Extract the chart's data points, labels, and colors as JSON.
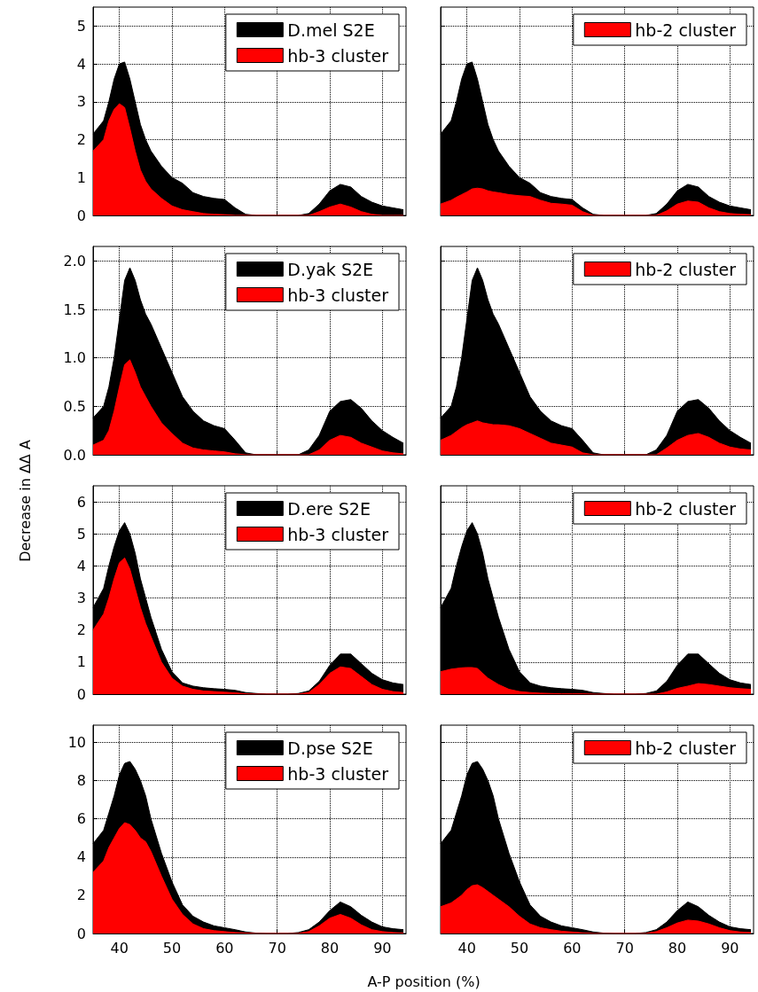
{
  "chart_data": [
    {
      "type": "area",
      "x": [
        35,
        37,
        38,
        39,
        40,
        41,
        42,
        43,
        44,
        45,
        46,
        48,
        50,
        52,
        54,
        56,
        58,
        60,
        62,
        64,
        66,
        68,
        70,
        72,
        74,
        76,
        78,
        80,
        82,
        84,
        86,
        88,
        90,
        92,
        94
      ],
      "xlim": [
        35,
        94.5
      ],
      "xticks": [
        40,
        50,
        60,
        70,
        80,
        90
      ],
      "ylim": [
        0,
        5.5
      ],
      "yticks": [
        0,
        1,
        2,
        3,
        4,
        5
      ],
      "grid": true,
      "legend": "top right",
      "tick_labels": "y",
      "series": [
        {
          "name": "D.mel S2E",
          "color": "#000000",
          "values": [
            2.15,
            2.5,
            3.0,
            3.6,
            4.0,
            4.05,
            3.6,
            3.0,
            2.4,
            2.0,
            1.7,
            1.3,
            1.0,
            0.85,
            0.6,
            0.5,
            0.45,
            0.42,
            0.2,
            0.03,
            0,
            0,
            0,
            0,
            0,
            0.05,
            0.3,
            0.65,
            0.82,
            0.75,
            0.5,
            0.35,
            0.25,
            0.2,
            0.15
          ]
        },
        {
          "name": "hb-3 cluster",
          "color": "#ff0000",
          "values": [
            1.7,
            2.0,
            2.5,
            2.8,
            2.95,
            2.85,
            2.3,
            1.7,
            1.2,
            0.9,
            0.7,
            0.45,
            0.25,
            0.15,
            0.1,
            0.05,
            0.03,
            0.02,
            0,
            0,
            0,
            0,
            0,
            0,
            0,
            0,
            0.1,
            0.22,
            0.3,
            0.22,
            0.1,
            0.03,
            0,
            0,
            0
          ]
        }
      ]
    },
    {
      "type": "area",
      "x": [
        35,
        37,
        38,
        39,
        40,
        41,
        42,
        43,
        44,
        45,
        46,
        48,
        50,
        52,
        54,
        56,
        58,
        60,
        62,
        64,
        66,
        68,
        70,
        72,
        74,
        76,
        78,
        80,
        82,
        84,
        86,
        88,
        90,
        92,
        94
      ],
      "xlim": [
        35,
        94.5
      ],
      "xticks": [
        40,
        50,
        60,
        70,
        80,
        90
      ],
      "ylim": [
        0,
        5.5
      ],
      "yticks": [
        0,
        1,
        2,
        3,
        4,
        5
      ],
      "grid": true,
      "legend": "top right",
      "tick_labels": false,
      "series": [
        {
          "color": "#000000",
          "values": [
            2.15,
            2.5,
            3.0,
            3.6,
            4.0,
            4.05,
            3.6,
            3.0,
            2.4,
            2.0,
            1.7,
            1.3,
            1.0,
            0.85,
            0.6,
            0.5,
            0.45,
            0.42,
            0.2,
            0.03,
            0,
            0,
            0,
            0,
            0,
            0.05,
            0.3,
            0.65,
            0.82,
            0.75,
            0.5,
            0.35,
            0.25,
            0.2,
            0.15
          ]
        },
        {
          "name": "hb-2 cluster",
          "color": "#ff0000",
          "values": [
            0.3,
            0.4,
            0.48,
            0.55,
            0.62,
            0.7,
            0.72,
            0.7,
            0.65,
            0.62,
            0.6,
            0.55,
            0.52,
            0.5,
            0.4,
            0.32,
            0.3,
            0.27,
            0.1,
            0,
            0,
            0,
            0,
            0,
            0,
            0,
            0.12,
            0.3,
            0.38,
            0.35,
            0.2,
            0.1,
            0.05,
            0.03,
            0.02
          ]
        }
      ]
    },
    {
      "type": "area",
      "x": [
        35,
        37,
        38,
        39,
        40,
        41,
        42,
        43,
        44,
        45,
        46,
        48,
        50,
        52,
        54,
        56,
        58,
        60,
        62,
        64,
        66,
        68,
        70,
        72,
        74,
        76,
        78,
        80,
        82,
        84,
        86,
        88,
        90,
        92,
        94
      ],
      "xlim": [
        35,
        94.5
      ],
      "xticks": [
        40,
        50,
        60,
        70,
        80,
        90
      ],
      "ylim": [
        0,
        2.15
      ],
      "yticks": [
        {
          "value": 0,
          "label": "0.0"
        },
        {
          "value": 0.5,
          "label": "0.5"
        },
        {
          "value": 1,
          "label": "1.0"
        },
        {
          "value": 1.5,
          "label": "1.5"
        },
        {
          "value": 2,
          "label": "2.0"
        }
      ],
      "grid": true,
      "legend": "top right",
      "tick_labels": "y",
      "series": [
        {
          "name": "D.yak S2E",
          "color": "#000000",
          "values": [
            0.38,
            0.5,
            0.7,
            1.0,
            1.4,
            1.8,
            1.93,
            1.8,
            1.6,
            1.45,
            1.35,
            1.1,
            0.85,
            0.6,
            0.45,
            0.35,
            0.3,
            0.27,
            0.15,
            0.02,
            0,
            0,
            0,
            0,
            0,
            0.05,
            0.2,
            0.45,
            0.55,
            0.57,
            0.48,
            0.35,
            0.25,
            0.18,
            0.12
          ]
        },
        {
          "name": "hb-3 cluster",
          "color": "#ff0000",
          "values": [
            0.1,
            0.15,
            0.25,
            0.45,
            0.7,
            0.93,
            0.98,
            0.85,
            0.7,
            0.6,
            0.5,
            0.33,
            0.22,
            0.12,
            0.07,
            0.05,
            0.04,
            0.03,
            0.01,
            0,
            0,
            0,
            0,
            0,
            0,
            0,
            0.05,
            0.15,
            0.2,
            0.18,
            0.12,
            0.08,
            0.04,
            0.02,
            0.01
          ]
        }
      ]
    },
    {
      "type": "area",
      "x": [
        35,
        37,
        38,
        39,
        40,
        41,
        42,
        43,
        44,
        45,
        46,
        48,
        50,
        52,
        54,
        56,
        58,
        60,
        62,
        64,
        66,
        68,
        70,
        72,
        74,
        76,
        78,
        80,
        82,
        84,
        86,
        88,
        90,
        92,
        94
      ],
      "xlim": [
        35,
        94.5
      ],
      "xticks": [
        40,
        50,
        60,
        70,
        80,
        90
      ],
      "ylim": [
        0,
        2.15
      ],
      "yticks": [
        0,
        0.5,
        1,
        1.5,
        2
      ],
      "grid": true,
      "legend": "top right",
      "tick_labels": false,
      "series": [
        {
          "color": "#000000",
          "values": [
            0.38,
            0.5,
            0.7,
            1.0,
            1.4,
            1.8,
            1.93,
            1.8,
            1.6,
            1.45,
            1.35,
            1.1,
            0.85,
            0.6,
            0.45,
            0.35,
            0.3,
            0.27,
            0.15,
            0.02,
            0,
            0,
            0,
            0,
            0,
            0.05,
            0.2,
            0.45,
            0.55,
            0.57,
            0.48,
            0.35,
            0.25,
            0.18,
            0.12
          ]
        },
        {
          "name": "hb-2 cluster",
          "color": "#ff0000",
          "values": [
            0.15,
            0.2,
            0.24,
            0.28,
            0.31,
            0.33,
            0.35,
            0.33,
            0.32,
            0.31,
            0.31,
            0.3,
            0.27,
            0.22,
            0.17,
            0.12,
            0.1,
            0.08,
            0.02,
            0,
            0,
            0,
            0,
            0,
            0,
            0,
            0.07,
            0.15,
            0.2,
            0.22,
            0.18,
            0.12,
            0.08,
            0.06,
            0.05
          ]
        }
      ]
    },
    {
      "type": "area",
      "ylabel": "Decrease in ΔΔ A",
      "x": [
        35,
        37,
        38,
        39,
        40,
        41,
        42,
        43,
        44,
        45,
        46,
        48,
        50,
        52,
        54,
        56,
        58,
        60,
        62,
        64,
        66,
        68,
        70,
        72,
        74,
        76,
        78,
        80,
        82,
        84,
        86,
        88,
        90,
        92,
        94
      ],
      "xlim": [
        35,
        94.5
      ],
      "xticks": [
        40,
        50,
        60,
        70,
        80,
        90
      ],
      "ylim": [
        0,
        6.5
      ],
      "yticks": [
        0,
        1,
        2,
        3,
        4,
        5,
        6
      ],
      "grid": true,
      "legend": "top right",
      "tick_labels": "y",
      "series": [
        {
          "name": "D.ere S2E",
          "color": "#000000",
          "values": [
            2.7,
            3.3,
            4.0,
            4.6,
            5.1,
            5.35,
            5.0,
            4.4,
            3.6,
            3.0,
            2.4,
            1.4,
            0.7,
            0.35,
            0.25,
            0.2,
            0.17,
            0.15,
            0.12,
            0.05,
            0.02,
            0,
            0,
            0,
            0.02,
            0.1,
            0.4,
            0.9,
            1.25,
            1.25,
            0.95,
            0.65,
            0.45,
            0.35,
            0.3
          ]
        },
        {
          "name": "hb-3 cluster",
          "color": "#ff0000",
          "values": [
            2.0,
            2.5,
            3.0,
            3.6,
            4.1,
            4.25,
            3.9,
            3.3,
            2.7,
            2.2,
            1.8,
            1.0,
            0.5,
            0.25,
            0.15,
            0.1,
            0.08,
            0.06,
            0.04,
            0.01,
            0,
            0,
            0,
            0,
            0,
            0.05,
            0.3,
            0.65,
            0.85,
            0.8,
            0.55,
            0.3,
            0.15,
            0.08,
            0.05
          ]
        }
      ]
    },
    {
      "type": "area",
      "x": [
        35,
        37,
        38,
        39,
        40,
        41,
        42,
        43,
        44,
        45,
        46,
        48,
        50,
        52,
        54,
        56,
        58,
        60,
        62,
        64,
        66,
        68,
        70,
        72,
        74,
        76,
        78,
        80,
        82,
        84,
        86,
        88,
        90,
        92,
        94
      ],
      "xlim": [
        35,
        94.5
      ],
      "xticks": [
        40,
        50,
        60,
        70,
        80,
        90
      ],
      "ylim": [
        0,
        6.5
      ],
      "yticks": [
        0,
        1,
        2,
        3,
        4,
        5,
        6
      ],
      "grid": true,
      "legend": "top right",
      "tick_labels": false,
      "series": [
        {
          "color": "#000000",
          "values": [
            2.7,
            3.3,
            4.0,
            4.6,
            5.1,
            5.35,
            5.0,
            4.4,
            3.6,
            3.0,
            2.4,
            1.4,
            0.7,
            0.35,
            0.25,
            0.2,
            0.17,
            0.15,
            0.12,
            0.05,
            0.02,
            0,
            0,
            0,
            0.02,
            0.1,
            0.4,
            0.9,
            1.25,
            1.25,
            0.95,
            0.65,
            0.45,
            0.35,
            0.3
          ]
        },
        {
          "name": "hb-2 cluster",
          "color": "#ff0000",
          "values": [
            0.7,
            0.78,
            0.8,
            0.82,
            0.83,
            0.83,
            0.8,
            0.65,
            0.5,
            0.4,
            0.3,
            0.15,
            0.08,
            0.05,
            0.03,
            0.02,
            0.01,
            0.01,
            0.01,
            0,
            0,
            0,
            0,
            0,
            0,
            0,
            0.07,
            0.18,
            0.25,
            0.33,
            0.3,
            0.25,
            0.2,
            0.17,
            0.15
          ]
        }
      ]
    },
    {
      "type": "area",
      "xlabel": "A-P position (%)",
      "x": [
        35,
        37,
        38,
        39,
        40,
        41,
        42,
        43,
        44,
        45,
        46,
        48,
        50,
        52,
        54,
        56,
        58,
        60,
        62,
        64,
        66,
        68,
        70,
        72,
        74,
        76,
        78,
        80,
        82,
        84,
        86,
        88,
        90,
        92,
        94
      ],
      "xlim": [
        35,
        94.5
      ],
      "xticks": [
        40,
        50,
        60,
        70,
        80,
        90
      ],
      "ylim": [
        0,
        10.9
      ],
      "yticks": [
        0,
        2,
        4,
        6,
        8,
        10
      ],
      "grid": true,
      "legend": "top right",
      "series": [
        {
          "name": "D.pse S2E",
          "color": "#000000",
          "values": [
            4.7,
            5.4,
            6.3,
            7.2,
            8.3,
            8.9,
            9.0,
            8.6,
            8.0,
            7.2,
            6.0,
            4.2,
            2.7,
            1.5,
            0.9,
            0.6,
            0.4,
            0.3,
            0.2,
            0.08,
            0.02,
            0,
            0,
            0,
            0.05,
            0.2,
            0.6,
            1.2,
            1.65,
            1.4,
            0.95,
            0.6,
            0.35,
            0.25,
            0.2
          ]
        },
        {
          "name": "hb-3 cluster",
          "color": "#ff0000",
          "values": [
            3.2,
            3.8,
            4.5,
            5.0,
            5.5,
            5.8,
            5.7,
            5.4,
            5.0,
            4.8,
            4.3,
            3.0,
            1.8,
            1.0,
            0.5,
            0.25,
            0.15,
            0.1,
            0.05,
            0.02,
            0,
            0,
            0,
            0,
            0,
            0.1,
            0.4,
            0.8,
            1.0,
            0.8,
            0.45,
            0.2,
            0.1,
            0.05,
            0.02
          ]
        }
      ]
    },
    {
      "type": "area",
      "x": [
        35,
        37,
        38,
        39,
        40,
        41,
        42,
        43,
        44,
        45,
        46,
        48,
        50,
        52,
        54,
        56,
        58,
        60,
        62,
        64,
        66,
        68,
        70,
        72,
        74,
        76,
        78,
        80,
        82,
        84,
        86,
        88,
        90,
        92,
        94
      ],
      "xlim": [
        35,
        94.5
      ],
      "xticks": [
        40,
        50,
        60,
        70,
        80,
        90
      ],
      "ylim": [
        0,
        10.9
      ],
      "yticks": [
        0,
        2,
        4,
        6,
        8,
        10
      ],
      "grid": true,
      "legend": "top right",
      "tick_labels": "x",
      "series": [
        {
          "color": "#000000",
          "values": [
            4.7,
            5.4,
            6.3,
            7.2,
            8.3,
            8.9,
            9.0,
            8.6,
            8.0,
            7.2,
            6.0,
            4.2,
            2.7,
            1.5,
            0.9,
            0.6,
            0.4,
            0.3,
            0.2,
            0.08,
            0.02,
            0,
            0,
            0,
            0.05,
            0.2,
            0.6,
            1.2,
            1.65,
            1.4,
            0.95,
            0.6,
            0.35,
            0.25,
            0.2
          ]
        },
        {
          "name": "hb-2 cluster",
          "color": "#ff0000",
          "values": [
            1.4,
            1.6,
            1.8,
            2.0,
            2.3,
            2.5,
            2.55,
            2.4,
            2.2,
            2.0,
            1.8,
            1.4,
            0.9,
            0.5,
            0.3,
            0.2,
            0.12,
            0.08,
            0.03,
            0,
            0,
            0,
            0,
            0,
            0,
            0.1,
            0.3,
            0.55,
            0.7,
            0.65,
            0.5,
            0.3,
            0.15,
            0.08,
            0.05
          ]
        }
      ]
    }
  ]
}
